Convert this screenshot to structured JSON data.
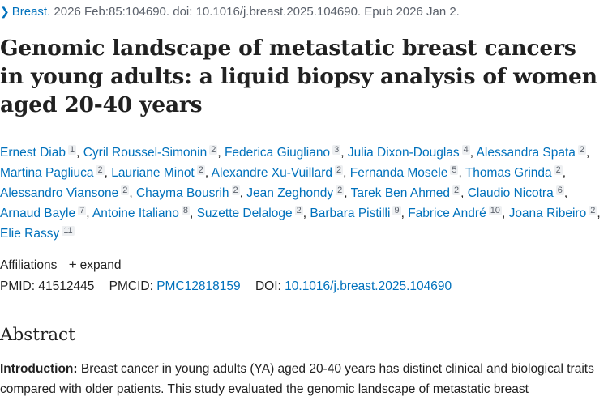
{
  "citation": {
    "journal": "Breast.",
    "details": " 2026 Feb:85:104690. doi: 10.1016/j.breast.2025.104690. Epub 2026 Jan 2."
  },
  "title": "Genomic landscape of metastatic breast cancers in young adults: a liquid biopsy analysis of women aged 20-40 years",
  "authors": [
    {
      "name": "Ernest Diab",
      "aff": "1"
    },
    {
      "name": "Cyril Roussel-Simonin",
      "aff": "2"
    },
    {
      "name": "Federica Giugliano",
      "aff": "3"
    },
    {
      "name": "Julia Dixon-Douglas",
      "aff": "4"
    },
    {
      "name": "Alessandra Spata",
      "aff": "2"
    },
    {
      "name": "Martina Pagliuca",
      "aff": "2"
    },
    {
      "name": "Lauriane Minot",
      "aff": "2"
    },
    {
      "name": "Alexandre Xu-Vuillard",
      "aff": "2"
    },
    {
      "name": "Fernanda Mosele",
      "aff": "5"
    },
    {
      "name": "Thomas Grinda",
      "aff": "2"
    },
    {
      "name": "Alessandro Viansone",
      "aff": "2"
    },
    {
      "name": "Chayma Bousrih",
      "aff": "2"
    },
    {
      "name": "Jean Zeghondy",
      "aff": "2"
    },
    {
      "name": "Tarek Ben Ahmed",
      "aff": "2"
    },
    {
      "name": "Claudio Nicotra",
      "aff": "6"
    },
    {
      "name": "Arnaud Bayle",
      "aff": "7"
    },
    {
      "name": "Antoine Italiano",
      "aff": "8"
    },
    {
      "name": "Suzette Delaloge",
      "aff": "2"
    },
    {
      "name": "Barbara Pistilli",
      "aff": "9"
    },
    {
      "name": "Fabrice André",
      "aff": "10"
    },
    {
      "name": "Joana Ribeiro",
      "aff": "2"
    },
    {
      "name": "Elie Rassy",
      "aff": "11"
    }
  ],
  "affiliations": {
    "label": "Affiliations",
    "expand_label": "expand",
    "expand_icon": "+"
  },
  "identifiers": {
    "pmid_label": "PMID:",
    "pmid": "41512445",
    "pmcid_label": "PMCID:",
    "pmcid": "PMC12818159",
    "doi_label": "DOI:",
    "doi": "10.1016/j.breast.2025.104690"
  },
  "abstract": {
    "heading": "Abstract",
    "intro_label": "Introduction:",
    "intro_text": " Breast cancer in young adults (YA) aged 20-40 years has distinct clinical and biological traits compared with older patients. This study evaluated the genomic landscape of metastatic breast"
  },
  "colors": {
    "link": "#0071bc",
    "text": "#212121",
    "muted": "#5b616b"
  }
}
